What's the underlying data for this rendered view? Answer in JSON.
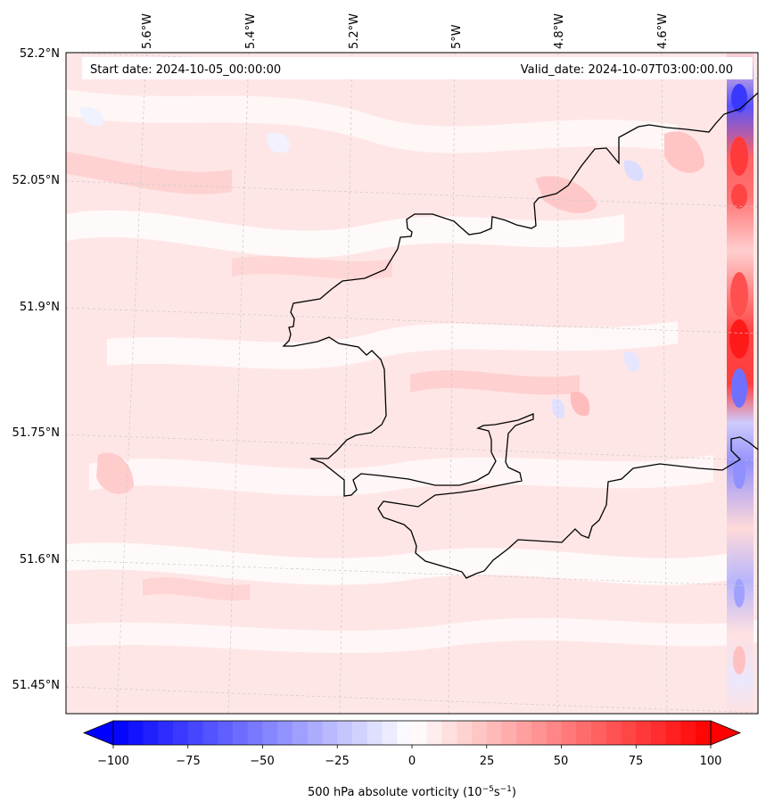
{
  "map": {
    "start_date_text": "Start date: 2024-10-05_00:00:00",
    "valid_date_text": "Valid_date: 2024-10-07T03:00:00.00",
    "lon_labels": [
      "5.6°W",
      "5.4°W",
      "5.2°W",
      "5°W",
      "4.8°W",
      "4.6°W"
    ],
    "lat_labels": [
      "52.2°N",
      "52.05°N",
      "51.9°N",
      "51.75°N",
      "51.6°N",
      "51.45°N"
    ],
    "field_colors": {
      "blue_strong": "#0000ff",
      "white": "#ffffff",
      "red_strong": "#ff0000",
      "pale_red": "#ffe4e4",
      "light_red": "#ffcccc",
      "pale_blue": "#eef0ff"
    },
    "coastline_color": "#000000",
    "gridline_color": "#c8c8c8"
  },
  "colorbar": {
    "min": -100,
    "max": 100,
    "tick_labels": [
      "−100",
      "−75",
      "−50",
      "−25",
      "0",
      "25",
      "50",
      "75",
      "100"
    ],
    "label_main": "500 hPa absolute vorticity (10",
    "label_exp1": "−5",
    "label_mid": "s",
    "label_exp2": "−1",
    "label_end": ")",
    "extend": "both"
  }
}
